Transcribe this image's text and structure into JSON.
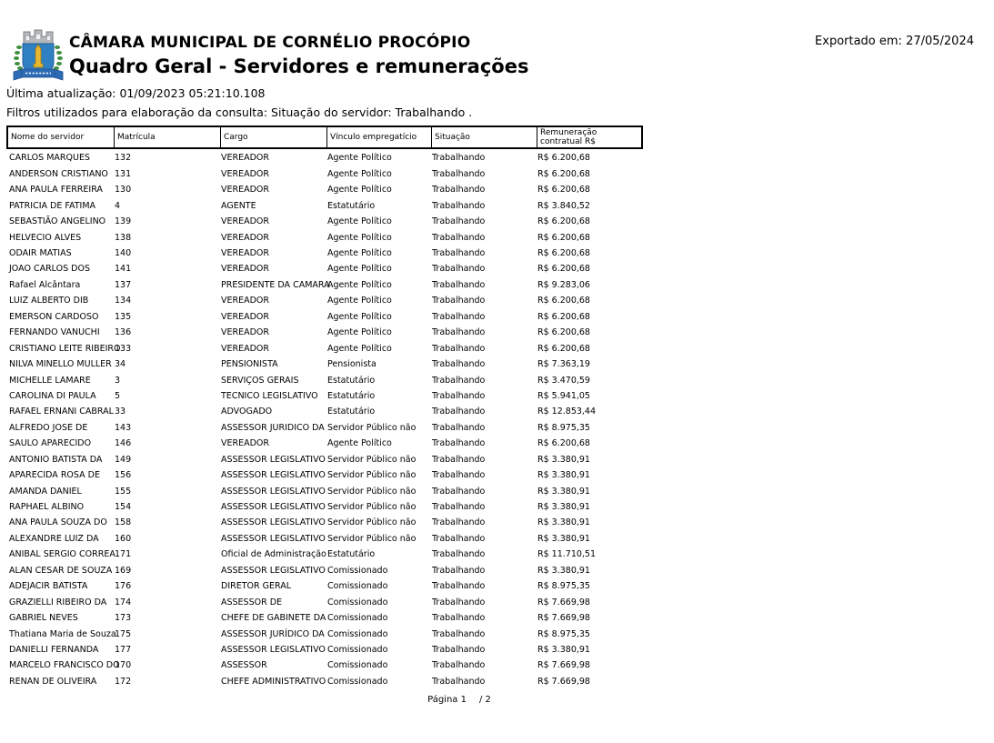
{
  "header": {
    "org_name": "CÂMARA MUNICIPAL DE CORNÉLIO PROCÓPIO",
    "report_title": "Quadro Geral - Servidores e remunerações",
    "exported_label": "Exportado em: 27/05/2024",
    "logo_icon": "coat-of-arms-icon",
    "logo_colors": {
      "shield_blue": "#2f80c3",
      "crown_gray": "#b4b8bc",
      "laurel_green": "#3f8f3f",
      "ribbon_blue": "#2d6cb5",
      "tower_gold": "#e8b831"
    }
  },
  "meta": {
    "last_update": "Última atualização: 01/09/2023 05:21:10.108",
    "filters": "Filtros utilizados para elaboração da consulta: Situação do servidor: Trabalhando ."
  },
  "table": {
    "columns": [
      "Nome do servidor",
      "Matrícula",
      "Cargo",
      "Vínculo empregatício",
      "Situação",
      "Remuneração contratual R$"
    ],
    "rows": [
      [
        "CARLOS MARQUES",
        "132",
        "VEREADOR",
        "Agente Político",
        "Trabalhando",
        "R$ 6.200,68"
      ],
      [
        "ANDERSON CRISTIANO",
        "131",
        "VEREADOR",
        "Agente Político",
        "Trabalhando",
        "R$ 6.200,68"
      ],
      [
        "ANA PAULA FERREIRA",
        "130",
        "VEREADOR",
        "Agente Político",
        "Trabalhando",
        "R$ 6.200,68"
      ],
      [
        "PATRICIA DE FATIMA",
        "4",
        "AGENTE",
        "Estatutário",
        "Trabalhando",
        "R$ 3.840,52"
      ],
      [
        "SEBASTIÃO ANGELINO",
        "139",
        "VEREADOR",
        "Agente Político",
        "Trabalhando",
        "R$ 6.200,68"
      ],
      [
        "HELVECIO ALVES",
        "138",
        "VEREADOR",
        "Agente Político",
        "Trabalhando",
        "R$ 6.200,68"
      ],
      [
        "ODAIR MATIAS",
        "140",
        "VEREADOR",
        "Agente Político",
        "Trabalhando",
        "R$ 6.200,68"
      ],
      [
        "JOAO CARLOS DOS",
        "141",
        "VEREADOR",
        "Agente Político",
        "Trabalhando",
        "R$ 6.200,68"
      ],
      [
        "Rafael Alcântara",
        "137",
        "PRESIDENTE DA CAMARA",
        "Agente Político",
        "Trabalhando",
        "R$ 9.283,06"
      ],
      [
        "LUIZ ALBERTO DIB",
        "134",
        "VEREADOR",
        "Agente Político",
        "Trabalhando",
        "R$ 6.200,68"
      ],
      [
        "EMERSON CARDOSO",
        "135",
        "VEREADOR",
        "Agente Político",
        "Trabalhando",
        "R$ 6.200,68"
      ],
      [
        "FERNANDO VANUCHI",
        "136",
        "VEREADOR",
        "Agente Político",
        "Trabalhando",
        "R$ 6.200,68"
      ],
      [
        "CRISTIANO LEITE RIBEIRO",
        "133",
        "VEREADOR",
        "Agente Político",
        "Trabalhando",
        "R$ 6.200,68"
      ],
      [
        "NILVA MINELLO MULLER",
        "34",
        "PENSIONISTA",
        "Pensionista",
        "Trabalhando",
        "R$ 7.363,19"
      ],
      [
        "MICHELLE LAMARE",
        "3",
        "SERVIÇOS GERAIS",
        "Estatutário",
        "Trabalhando",
        "R$ 3.470,59"
      ],
      [
        "CAROLINA DI PAULA",
        "5",
        "TECNICO LEGISLATIVO",
        "Estatutário",
        "Trabalhando",
        "R$ 5.941,05"
      ],
      [
        "RAFAEL ERNANI CABRAL",
        "33",
        "ADVOGADO",
        "Estatutário",
        "Trabalhando",
        "R$ 12.853,44"
      ],
      [
        "ALFREDO JOSE DE",
        "143",
        "ASSESSOR JURIDICO DA",
        "Servidor Público não",
        "Trabalhando",
        "R$ 8.975,35"
      ],
      [
        "SAULO APARECIDO",
        "146",
        "VEREADOR",
        "Agente Político",
        "Trabalhando",
        "R$ 6.200,68"
      ],
      [
        "ANTONIO BATISTA DA",
        "149",
        "ASSESSOR LEGISLATIVO",
        "Servidor Público não",
        "Trabalhando",
        "R$ 3.380,91"
      ],
      [
        "APARECIDA ROSA DE",
        "156",
        "ASSESSOR LEGISLATIVO",
        "Servidor Público não",
        "Trabalhando",
        "R$ 3.380,91"
      ],
      [
        "AMANDA DANIEL",
        "155",
        "ASSESSOR LEGISLATIVO",
        "Servidor Público não",
        "Trabalhando",
        "R$ 3.380,91"
      ],
      [
        "RAPHAEL ALBINO",
        "154",
        "ASSESSOR LEGISLATIVO",
        "Servidor Público não",
        "Trabalhando",
        "R$ 3.380,91"
      ],
      [
        "ANA PAULA SOUZA DO",
        "158",
        "ASSESSOR LEGISLATIVO",
        "Servidor Público não",
        "Trabalhando",
        "R$ 3.380,91"
      ],
      [
        "ALEXANDRE LUIZ DA",
        "160",
        "ASSESSOR LEGISLATIVO",
        "Servidor Público não",
        "Trabalhando",
        "R$ 3.380,91"
      ],
      [
        "ANIBAL SERGIO CORREA",
        "171",
        "Oficial de Administração",
        "Estatutário",
        "Trabalhando",
        "R$ 11.710,51"
      ],
      [
        "ALAN CESAR DE SOUZA",
        "169",
        "ASSESSOR LEGISLATIVO",
        "Comissionado",
        "Trabalhando",
        "R$ 3.380,91"
      ],
      [
        "ADEJACIR BATISTA",
        "176",
        "DIRETOR GERAL",
        "Comissionado",
        "Trabalhando",
        "R$ 8.975,35"
      ],
      [
        "GRAZIELLI RIBEIRO DA",
        "174",
        "ASSESSOR DE",
        "Comissionado",
        "Trabalhando",
        "R$ 7.669,98"
      ],
      [
        "GABRIEL NEVES",
        "173",
        "CHEFE DE GABINETE DA",
        "Comissionado",
        "Trabalhando",
        "R$ 7.669,98"
      ],
      [
        "Thatiana Maria de Souza",
        "175",
        "ASSESSOR JURÍDICO DA",
        "Comissionado",
        "Trabalhando",
        "R$ 8.975,35"
      ],
      [
        "DANIELLI FERNANDA",
        "177",
        "ASSESSOR LEGISLATIVO",
        "Comissionado",
        "Trabalhando",
        "R$ 3.380,91"
      ],
      [
        "MARCELO FRANCISCO DO",
        "170",
        "ASSESSOR",
        "Comissionado",
        "Trabalhando",
        "R$ 7.669,98"
      ],
      [
        "RENAN DE OLIVEIRA",
        "172",
        "CHEFE ADMINISTRATIVO",
        "Comissionado",
        "Trabalhando",
        "R$ 7.669,98"
      ]
    ]
  },
  "footer": {
    "page_label": "Página 1",
    "page_total": "/ 2"
  }
}
